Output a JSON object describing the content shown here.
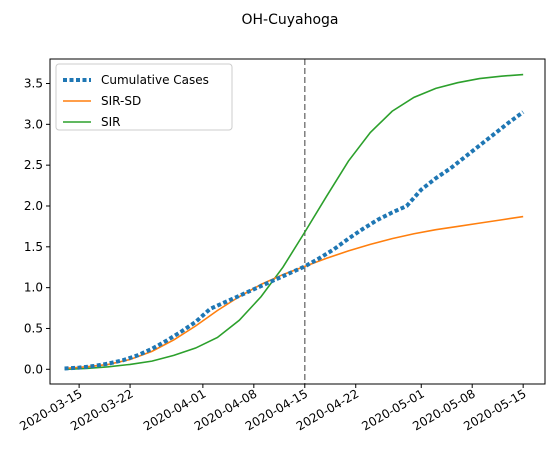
{
  "chart_data": {
    "type": "line",
    "title": "OH-Cuyahoga",
    "xlabel": "",
    "ylabel": "",
    "x_axis_type": "date",
    "xlim": [
      "2020-03-11",
      "2020-05-18"
    ],
    "ylim": [
      -0.18,
      3.8
    ],
    "x_ticks": [
      "2020-03-15",
      "2020-03-22",
      "2020-04-01",
      "2020-04-08",
      "2020-04-15",
      "2020-04-22",
      "2020-05-01",
      "2020-05-08",
      "2020-05-15"
    ],
    "y_ticks": [
      0.0,
      0.5,
      1.0,
      1.5,
      2.0,
      2.5,
      3.0,
      3.5
    ],
    "y_tick_labels": [
      "0.0",
      "0.5",
      "1.0",
      "1.5",
      "2.0",
      "2.5",
      "3.0",
      "3.5"
    ],
    "vline": {
      "x": "2020-04-15",
      "style": "dashed",
      "color": "#7f7f7f"
    },
    "legend_placement": "top-left",
    "grid": false,
    "series": [
      {
        "name": "Cumulative Cases",
        "color": "#1f77b4",
        "style": "dotted",
        "x": [
          "2020-03-13",
          "2020-03-15",
          "2020-03-17",
          "2020-03-19",
          "2020-03-21",
          "2020-03-23",
          "2020-03-25",
          "2020-03-27",
          "2020-03-29",
          "2020-03-31",
          "2020-04-02",
          "2020-04-03",
          "2020-04-05",
          "2020-04-07",
          "2020-04-09",
          "2020-04-11",
          "2020-04-13",
          "2020-04-15",
          "2020-04-17",
          "2020-04-19",
          "2020-04-21",
          "2020-04-23",
          "2020-04-25",
          "2020-04-27",
          "2020-04-29",
          "2020-05-01",
          "2020-05-03",
          "2020-05-05",
          "2020-05-07",
          "2020-05-09",
          "2020-05-11",
          "2020-05-13",
          "2020-05-15"
        ],
        "values": [
          0.01,
          0.02,
          0.04,
          0.07,
          0.11,
          0.17,
          0.25,
          0.35,
          0.46,
          0.58,
          0.74,
          0.78,
          0.86,
          0.94,
          1.02,
          1.1,
          1.18,
          1.26,
          1.36,
          1.47,
          1.6,
          1.72,
          1.83,
          1.92,
          2.0,
          2.2,
          2.34,
          2.46,
          2.6,
          2.74,
          2.88,
          3.02,
          3.15
        ]
      },
      {
        "name": "SIR-SD",
        "color": "#ff7f0e",
        "style": "solid",
        "x": [
          "2020-03-13",
          "2020-03-16",
          "2020-03-19",
          "2020-03-22",
          "2020-03-25",
          "2020-03-28",
          "2020-03-31",
          "2020-04-03",
          "2020-04-06",
          "2020-04-09",
          "2020-04-12",
          "2020-04-15",
          "2020-04-18",
          "2020-04-21",
          "2020-04-24",
          "2020-04-27",
          "2020-04-30",
          "2020-05-03",
          "2020-05-06",
          "2020-05-09",
          "2020-05-12",
          "2020-05-15"
        ],
        "values": [
          0.01,
          0.03,
          0.06,
          0.12,
          0.22,
          0.36,
          0.53,
          0.72,
          0.89,
          1.04,
          1.16,
          1.26,
          1.36,
          1.45,
          1.53,
          1.6,
          1.66,
          1.71,
          1.75,
          1.79,
          1.83,
          1.87
        ]
      },
      {
        "name": "SIR",
        "color": "#2ca02c",
        "style": "solid",
        "x": [
          "2020-03-13",
          "2020-03-16",
          "2020-03-19",
          "2020-03-22",
          "2020-03-25",
          "2020-03-28",
          "2020-03-31",
          "2020-04-03",
          "2020-04-06",
          "2020-04-09",
          "2020-04-12",
          "2020-04-15",
          "2020-04-18",
          "2020-04-21",
          "2020-04-24",
          "2020-04-27",
          "2020-04-30",
          "2020-05-03",
          "2020-05-06",
          "2020-05-09",
          "2020-05-12",
          "2020-05-15"
        ],
        "values": [
          0.0,
          0.01,
          0.03,
          0.06,
          0.1,
          0.17,
          0.26,
          0.39,
          0.6,
          0.89,
          1.25,
          1.68,
          2.12,
          2.55,
          2.9,
          3.16,
          3.33,
          3.44,
          3.51,
          3.56,
          3.59,
          3.61
        ]
      }
    ]
  }
}
